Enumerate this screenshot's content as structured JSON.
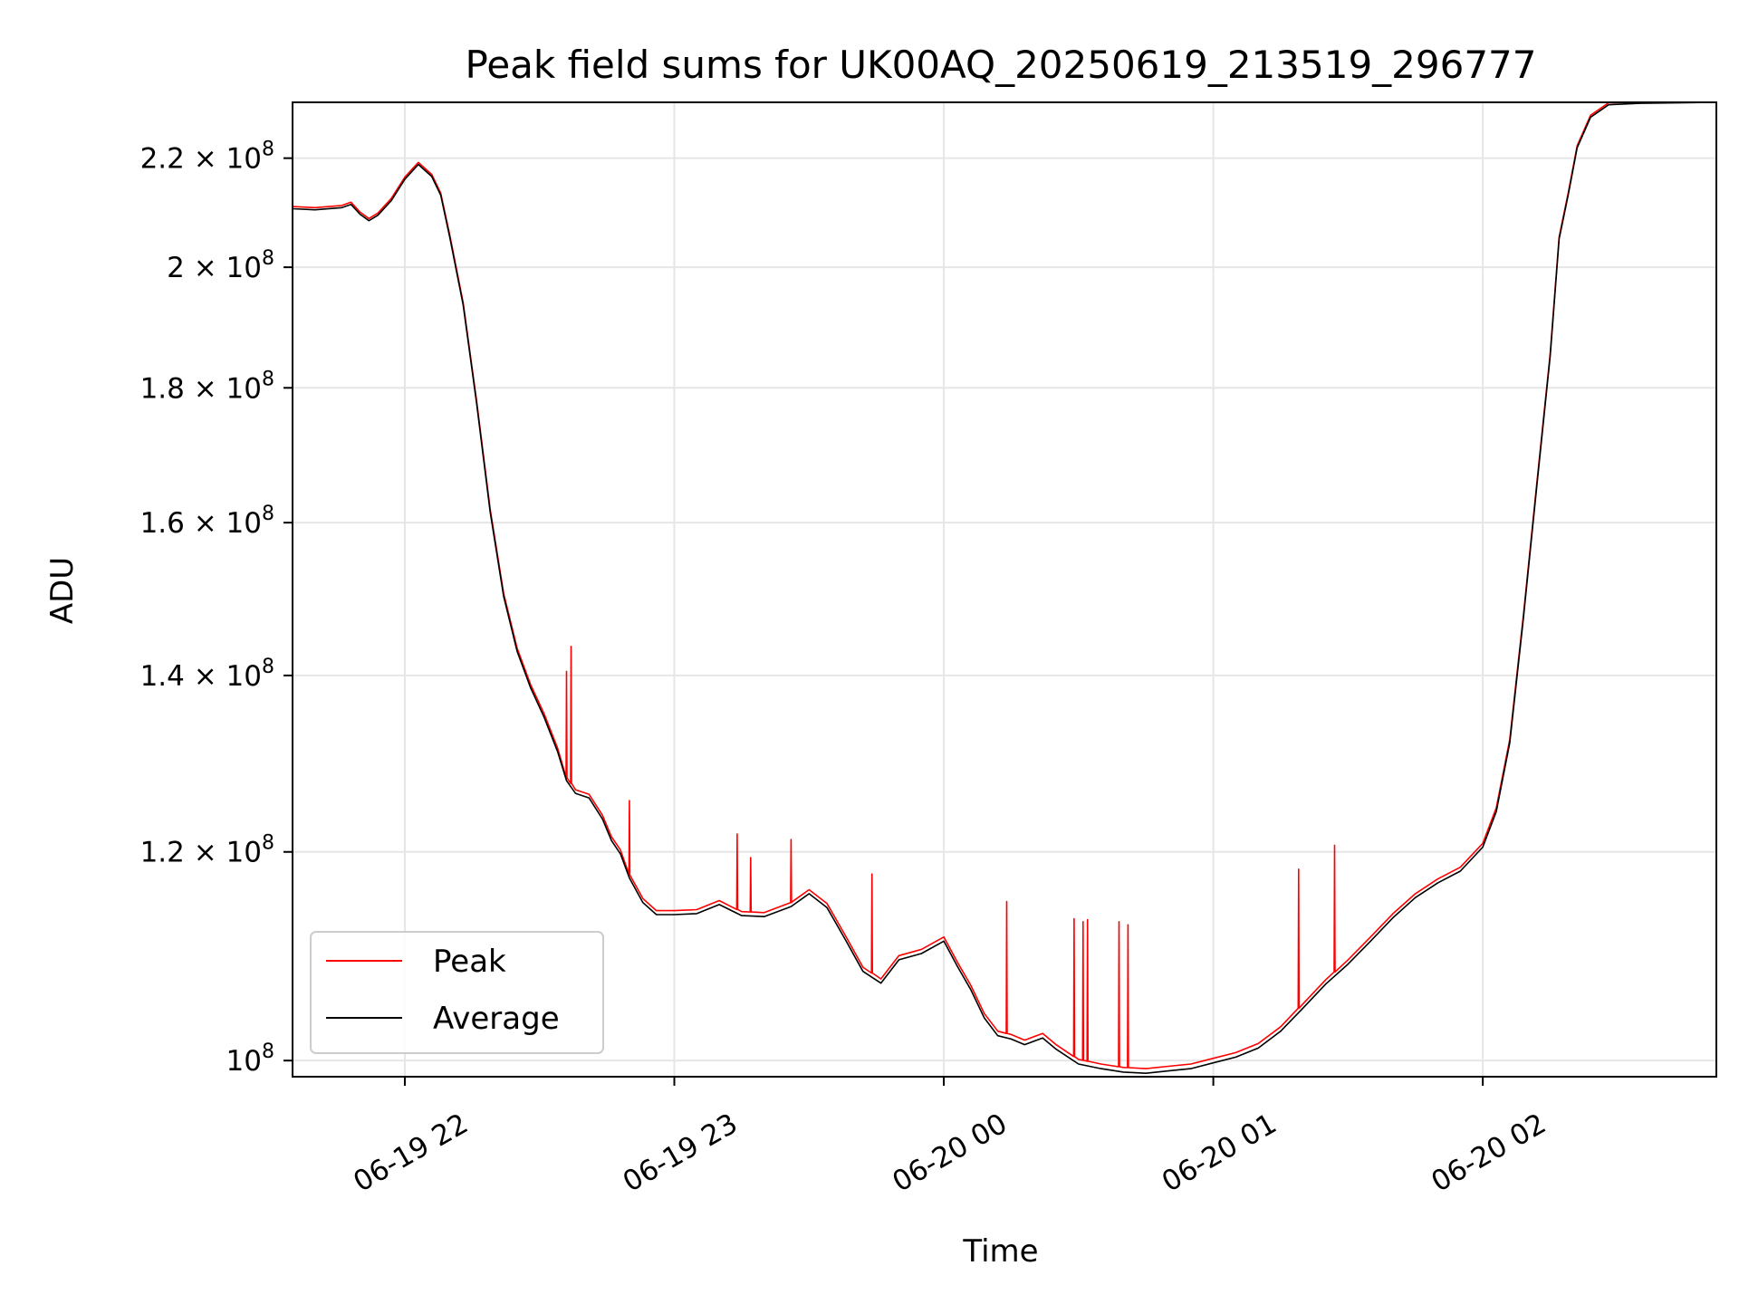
{
  "chart_data": {
    "type": "line",
    "title": "Peak field sums for UK00AQ_20250619_213519_296777",
    "xlabel": "Time",
    "ylabel": "ADU",
    "yscale": "log",
    "grid": true,
    "legend_position": "lower-left",
    "xlim": [
      "2025-06-19 21:35",
      "2025-06-20 02:52"
    ],
    "ylim": [
      98600000,
      231000000
    ],
    "x_ticks": [
      {
        "value": "2025-06-19 22:00",
        "label": "06-19 22"
      },
      {
        "value": "2025-06-19 23:00",
        "label": "06-19 23"
      },
      {
        "value": "2025-06-20 00:00",
        "label": "06-20 00"
      },
      {
        "value": "2025-06-20 01:00",
        "label": "06-20 01"
      },
      {
        "value": "2025-06-20 02:00",
        "label": "06-20 02"
      }
    ],
    "y_ticks": [
      {
        "value": 100000000,
        "mantissa": "",
        "exponent": "8"
      },
      {
        "value": 120000000,
        "mantissa": "1.2",
        "exponent": "8"
      },
      {
        "value": 140000000,
        "mantissa": "1.4",
        "exponent": "8"
      },
      {
        "value": 160000000,
        "mantissa": "1.6",
        "exponent": "8"
      },
      {
        "value": 180000000,
        "mantissa": "1.8",
        "exponent": "8"
      },
      {
        "value": 200000000,
        "mantissa": "2",
        "exponent": "8"
      },
      {
        "value": 220000000,
        "mantissa": "2.2",
        "exponent": "8"
      }
    ],
    "series": [
      {
        "name": "Average",
        "color": "#000000",
        "x": [
          "2025-06-19 21:35",
          "2025-06-19 21:40",
          "2025-06-19 21:46",
          "2025-06-19 21:48",
          "2025-06-19 21:50",
          "2025-06-19 21:52",
          "2025-06-19 21:54",
          "2025-06-19 21:57",
          "2025-06-19 22:00",
          "2025-06-19 22:03",
          "2025-06-19 22:06",
          "2025-06-19 22:08",
          "2025-06-19 22:10",
          "2025-06-19 22:13",
          "2025-06-19 22:16",
          "2025-06-19 22:19",
          "2025-06-19 22:22",
          "2025-06-19 22:25",
          "2025-06-19 22:28",
          "2025-06-19 22:31",
          "2025-06-19 22:34",
          "2025-06-19 22:36",
          "2025-06-19 22:38",
          "2025-06-19 22:41",
          "2025-06-19 22:44",
          "2025-06-19 22:46",
          "2025-06-19 22:48",
          "2025-06-19 22:50",
          "2025-06-19 22:53",
          "2025-06-19 22:56",
          "2025-06-19 23:00",
          "2025-06-19 23:05",
          "2025-06-19 23:10",
          "2025-06-19 23:15",
          "2025-06-19 23:20",
          "2025-06-19 23:26",
          "2025-06-19 23:30",
          "2025-06-19 23:34",
          "2025-06-19 23:38",
          "2025-06-19 23:42",
          "2025-06-19 23:46",
          "2025-06-19 23:50",
          "2025-06-19 23:55",
          "2025-06-20 00:00",
          "2025-06-20 00:03",
          "2025-06-20 00:06",
          "2025-06-20 00:09",
          "2025-06-20 00:12",
          "2025-06-20 00:15",
          "2025-06-20 00:18",
          "2025-06-20 00:22",
          "2025-06-20 00:25",
          "2025-06-20 00:30",
          "2025-06-20 00:35",
          "2025-06-20 00:40",
          "2025-06-20 00:45",
          "2025-06-20 00:50",
          "2025-06-20 00:55",
          "2025-06-20 01:00",
          "2025-06-20 01:05",
          "2025-06-20 01:10",
          "2025-06-20 01:15",
          "2025-06-20 01:20",
          "2025-06-20 01:25",
          "2025-06-20 01:30",
          "2025-06-20 01:35",
          "2025-06-20 01:40",
          "2025-06-20 01:45",
          "2025-06-20 01:50",
          "2025-06-20 01:55",
          "2025-06-20 02:00",
          "2025-06-20 02:03",
          "2025-06-20 02:06",
          "2025-06-20 02:09",
          "2025-06-20 02:12",
          "2025-06-20 02:15",
          "2025-06-20 02:17",
          "2025-06-20 02:19",
          "2025-06-20 02:21",
          "2025-06-20 02:24",
          "2025-06-20 02:28",
          "2025-06-20 02:35",
          "2025-06-20 02:45",
          "2025-06-20 02:52"
        ],
        "values": [
          210500000,
          210300000,
          210700000,
          211300000,
          209500000,
          208300000,
          209300000,
          212000000,
          216000000,
          218800000,
          216500000,
          213000000,
          205300000,
          193500000,
          177500000,
          161500000,
          150000000,
          143000000,
          138500000,
          135000000,
          131000000,
          127700000,
          126300000,
          125800000,
          123500000,
          121200000,
          119800000,
          117300000,
          114800000,
          113600000,
          113600000,
          113700000,
          114600000,
          113500000,
          113400000,
          114400000,
          115700000,
          114300000,
          111200000,
          108100000,
          107000000,
          109200000,
          109800000,
          111000000,
          108600000,
          106400000,
          103800000,
          102200000,
          101900000,
          101400000,
          102000000,
          101000000,
          99700000,
          99300000,
          99000000,
          98900000,
          99100000,
          99300000,
          99800000,
          100300000,
          101100000,
          102600000,
          104700000,
          106900000,
          108800000,
          111000000,
          113300000,
          115300000,
          116800000,
          118000000,
          120500000,
          124300000,
          132000000,
          147000000,
          165000000,
          185000000,
          205000000,
          213000000,
          222000000,
          228000000,
          230500000,
          230800000,
          230900000,
          231000000
        ]
      },
      {
        "name": "Peak",
        "color": "#ff0000",
        "x": [
          "2025-06-19 21:35",
          "2025-06-19 21:40",
          "2025-06-19 21:46",
          "2025-06-19 21:48",
          "2025-06-19 21:50",
          "2025-06-19 21:52",
          "2025-06-19 21:54",
          "2025-06-19 21:57",
          "2025-06-19 22:00",
          "2025-06-19 22:03",
          "2025-06-19 22:06",
          "2025-06-19 22:08",
          "2025-06-19 22:10",
          "2025-06-19 22:13",
          "2025-06-19 22:16",
          "2025-06-19 22:19",
          "2025-06-19 22:22",
          "2025-06-19 22:25",
          "2025-06-19 22:28",
          "2025-06-19 22:31",
          "2025-06-19 22:34",
          "2025-06-19 22:36",
          "2025-06-19 22:38",
          "2025-06-19 22:41",
          "2025-06-19 22:44",
          "2025-06-19 22:46",
          "2025-06-19 22:48",
          "2025-06-19 22:50",
          "2025-06-19 22:53",
          "2025-06-19 22:56",
          "2025-06-19 23:00",
          "2025-06-19 23:05",
          "2025-06-19 23:10",
          "2025-06-19 23:15",
          "2025-06-19 23:20",
          "2025-06-19 23:26",
          "2025-06-19 23:30",
          "2025-06-19 23:34",
          "2025-06-19 23:38",
          "2025-06-19 23:42",
          "2025-06-19 23:46",
          "2025-06-19 23:50",
          "2025-06-19 23:55",
          "2025-06-20 00:00",
          "2025-06-20 00:03",
          "2025-06-20 00:06",
          "2025-06-20 00:09",
          "2025-06-20 00:12",
          "2025-06-20 00:15",
          "2025-06-20 00:18",
          "2025-06-20 00:22",
          "2025-06-20 00:25",
          "2025-06-20 00:30",
          "2025-06-20 00:35",
          "2025-06-20 00:40",
          "2025-06-20 00:45",
          "2025-06-20 00:50",
          "2025-06-20 00:55",
          "2025-06-20 01:00",
          "2025-06-20 01:05",
          "2025-06-20 01:10",
          "2025-06-20 01:15",
          "2025-06-20 01:20",
          "2025-06-20 01:25",
          "2025-06-20 01:30",
          "2025-06-20 01:35",
          "2025-06-20 01:40",
          "2025-06-20 01:45",
          "2025-06-20 01:50",
          "2025-06-20 01:55",
          "2025-06-20 02:00",
          "2025-06-20 02:03",
          "2025-06-20 02:06",
          "2025-06-20 02:09",
          "2025-06-20 02:12",
          "2025-06-20 02:15",
          "2025-06-20 02:17",
          "2025-06-20 02:19",
          "2025-06-20 02:21",
          "2025-06-20 02:24",
          "2025-06-20 02:28",
          "2025-06-20 02:35",
          "2025-06-20 02:45",
          "2025-06-20 02:52"
        ],
        "values": [
          210900000,
          210700000,
          211100000,
          211700000,
          209900000,
          208700000,
          209700000,
          212400000,
          216400000,
          219200000,
          216900000,
          213400000,
          205700000,
          193900000,
          177900000,
          161900000,
          150400000,
          143400000,
          138900000,
          135400000,
          131400000,
          128100000,
          126700000,
          126200000,
          123900000,
          121600000,
          120200000,
          117700000,
          115200000,
          114000000,
          114000000,
          114100000,
          115000000,
          113900000,
          113800000,
          114800000,
          116100000,
          114700000,
          111600000,
          108500000,
          107400000,
          109600000,
          110200000,
          111400000,
          109000000,
          106800000,
          104200000,
          102600000,
          102300000,
          101800000,
          102400000,
          101400000,
          100100000,
          99700000,
          99400000,
          99300000,
          99500000,
          99700000,
          100200000,
          100700000,
          101500000,
          103000000,
          105100000,
          107300000,
          109200000,
          111400000,
          113700000,
          115700000,
          117200000,
          118400000,
          120900000,
          124700000,
          132400000,
          147400000,
          165400000,
          185400000,
          205400000,
          213400000,
          222400000,
          228400000,
          230900000,
          231000000,
          231000000,
          231000000
        ],
        "spikes": [
          {
            "x": "2025-06-19 22:36",
            "value": 140500000
          },
          {
            "x": "2025-06-19 22:37",
            "value": 143600000
          },
          {
            "x": "2025-06-19 22:50",
            "value": 125500000
          },
          {
            "x": "2025-06-19 23:14",
            "value": 121900000
          },
          {
            "x": "2025-06-19 23:17",
            "value": 119400000
          },
          {
            "x": "2025-06-19 23:26",
            "value": 121300000
          },
          {
            "x": "2025-06-19 23:44",
            "value": 117700000
          },
          {
            "x": "2025-06-20 00:14",
            "value": 114900000
          },
          {
            "x": "2025-06-20 00:29",
            "value": 113200000
          },
          {
            "x": "2025-06-20 00:31",
            "value": 112900000
          },
          {
            "x": "2025-06-20 00:32",
            "value": 113100000
          },
          {
            "x": "2025-06-20 00:39",
            "value": 112900000
          },
          {
            "x": "2025-06-20 00:41",
            "value": 112600000
          },
          {
            "x": "2025-06-20 01:19",
            "value": 118200000
          },
          {
            "x": "2025-06-20 01:27",
            "value": 120700000
          }
        ]
      }
    ]
  }
}
